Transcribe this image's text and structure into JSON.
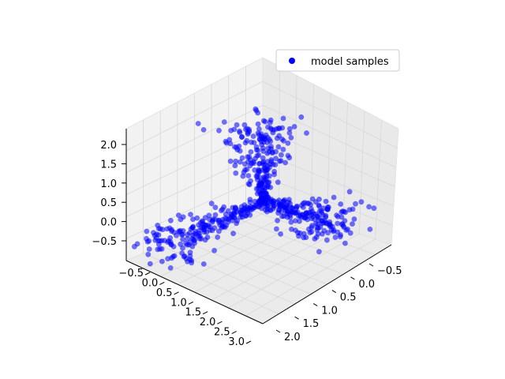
{
  "chart_data": {
    "type": "scatter",
    "projection": "3d",
    "legend": {
      "placement": "top-right",
      "entries": [
        {
          "label": "model samples",
          "color": "#0000ff"
        }
      ]
    },
    "x_ticks": [
      "−0.5",
      "0.0",
      "0.5",
      "1.0",
      "1.5",
      "2.0",
      "2.5",
      "3.0"
    ],
    "y_ticks": [
      "−0.5",
      "0.0",
      "0.5",
      "1.0",
      "1.5",
      "2.0"
    ],
    "z_ticks": [
      "−0.5",
      "0.0",
      "0.5",
      "1.0",
      "1.5",
      "2.0"
    ],
    "x_range": [
      -0.5,
      3.0
    ],
    "y_range": [
      -0.5,
      2.0
    ],
    "z_range": [
      -0.5,
      2.0
    ],
    "grid": true,
    "series": [
      {
        "name": "model samples",
        "color": "#0000ff",
        "clusters": [
          {
            "axis": "x",
            "x_range": [
              0.0,
              2.5
            ],
            "y_approx": 0.0,
            "z_approx": 0.0
          },
          {
            "axis": "y",
            "x_approx": 0.0,
            "y_range": [
              0.0,
              2.0
            ],
            "z_approx": 0.0
          },
          {
            "axis": "z",
            "x_approx": 0.0,
            "y_approx": 0.0,
            "z_range": [
              0.0,
              2.0
            ]
          }
        ]
      }
    ]
  }
}
